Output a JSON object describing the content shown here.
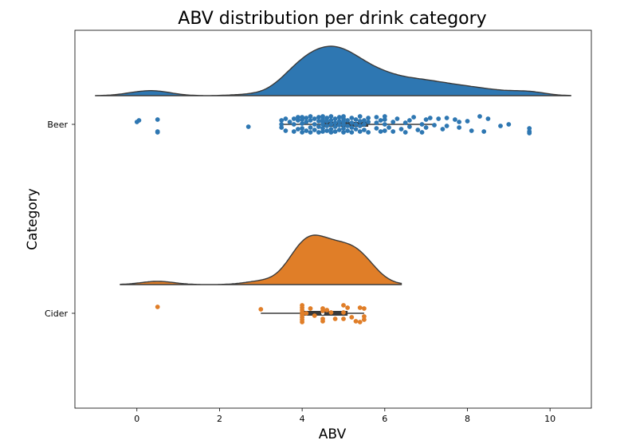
{
  "chart_data": {
    "type": "raincloud",
    "title": "ABV distribution per drink category",
    "xlabel": "ABV",
    "ylabel": "Category",
    "xlim": [
      -1.5,
      11
    ],
    "xticks": [
      0,
      2,
      4,
      6,
      8,
      10
    ],
    "grid": false,
    "categories": [
      "Beer",
      "Cider"
    ],
    "series": [
      {
        "name": "Beer",
        "color": "#2e77b2",
        "density_range": [
          -1.0,
          10.5
        ],
        "density_peak": 4.7,
        "box": {
          "whisker_low": 3.5,
          "q1": 4.5,
          "median": 4.9,
          "q3": 5.6,
          "whisker_high": 7.2
        },
        "points": [
          [
            0.0,
            0.03
          ],
          [
            0.05,
            0.05
          ],
          [
            0.5,
            -0.1
          ],
          [
            0.5,
            -0.09
          ],
          [
            0.5,
            0.06
          ],
          [
            2.7,
            -0.03
          ],
          [
            3.5,
            0.05
          ],
          [
            3.5,
            -0.04
          ],
          [
            3.5,
            0.0
          ],
          [
            3.6,
            0.07
          ],
          [
            3.6,
            -0.08
          ],
          [
            3.7,
            0.03
          ],
          [
            3.8,
            -0.09
          ],
          [
            3.8,
            0.07
          ],
          [
            3.8,
            0.0
          ],
          [
            3.9,
            -0.06
          ],
          [
            3.9,
            0.05
          ],
          [
            3.9,
            0.09
          ],
          [
            4.0,
            -0.1
          ],
          [
            4.0,
            -0.05
          ],
          [
            4.0,
            0.01
          ],
          [
            4.0,
            0.06
          ],
          [
            4.0,
            0.09
          ],
          [
            4.1,
            -0.08
          ],
          [
            4.1,
            0.03
          ],
          [
            4.1,
            0.08
          ],
          [
            4.2,
            -0.1
          ],
          [
            4.2,
            -0.04
          ],
          [
            4.2,
            0.05
          ],
          [
            4.2,
            0.1
          ],
          [
            4.3,
            -0.07
          ],
          [
            4.3,
            0.0
          ],
          [
            4.3,
            0.07
          ],
          [
            4.4,
            -0.1
          ],
          [
            4.4,
            -0.03
          ],
          [
            4.4,
            0.04
          ],
          [
            4.4,
            0.09
          ],
          [
            4.5,
            -0.09
          ],
          [
            4.5,
            -0.05
          ],
          [
            4.5,
            0.0
          ],
          [
            4.5,
            0.03
          ],
          [
            4.5,
            0.06
          ],
          [
            4.5,
            0.1
          ],
          [
            4.6,
            -0.08
          ],
          [
            4.6,
            -0.02
          ],
          [
            4.6,
            0.04
          ],
          [
            4.6,
            0.08
          ],
          [
            4.7,
            -0.1
          ],
          [
            4.7,
            -0.06
          ],
          [
            4.7,
            0.0
          ],
          [
            4.7,
            0.05
          ],
          [
            4.7,
            0.1
          ],
          [
            4.8,
            -0.09
          ],
          [
            4.8,
            -0.03
          ],
          [
            4.8,
            0.02
          ],
          [
            4.8,
            0.07
          ],
          [
            4.9,
            -0.07
          ],
          [
            4.9,
            -0.01
          ],
          [
            4.9,
            0.04
          ],
          [
            4.9,
            0.09
          ],
          [
            5.0,
            -0.1
          ],
          [
            5.0,
            -0.05
          ],
          [
            5.0,
            0.0
          ],
          [
            5.0,
            0.03
          ],
          [
            5.0,
            0.07
          ],
          [
            5.0,
            0.1
          ],
          [
            5.1,
            -0.08
          ],
          [
            5.1,
            -0.02
          ],
          [
            5.1,
            0.05
          ],
          [
            5.2,
            -0.1
          ],
          [
            5.2,
            -0.04
          ],
          [
            5.2,
            0.02
          ],
          [
            5.2,
            0.08
          ],
          [
            5.3,
            -0.06
          ],
          [
            5.3,
            0.0
          ],
          [
            5.3,
            0.06
          ],
          [
            5.4,
            -0.09
          ],
          [
            5.4,
            -0.02
          ],
          [
            5.4,
            0.04
          ],
          [
            5.4,
            0.1
          ],
          [
            5.5,
            -0.07
          ],
          [
            5.5,
            0.0
          ],
          [
            5.5,
            0.05
          ],
          [
            5.6,
            -0.1
          ],
          [
            5.6,
            0.03
          ],
          [
            5.6,
            0.08
          ],
          [
            5.8,
            -0.05
          ],
          [
            5.8,
            0.02
          ],
          [
            5.8,
            0.09
          ],
          [
            5.9,
            -0.09
          ],
          [
            5.9,
            0.05
          ],
          [
            6.0,
            -0.08
          ],
          [
            6.0,
            0.0
          ],
          [
            6.0,
            0.06
          ],
          [
            6.0,
            0.1
          ],
          [
            6.1,
            -0.04
          ],
          [
            6.2,
            0.03
          ],
          [
            6.2,
            -0.09
          ],
          [
            6.3,
            0.07
          ],
          [
            6.4,
            -0.06
          ],
          [
            6.5,
            0.02
          ],
          [
            6.5,
            -0.1
          ],
          [
            6.6,
            0.05
          ],
          [
            6.6,
            -0.03
          ],
          [
            6.7,
            0.09
          ],
          [
            6.8,
            -0.07
          ],
          [
            6.9,
            0.0
          ],
          [
            6.9,
            -0.1
          ],
          [
            7.0,
            0.06
          ],
          [
            7.0,
            -0.04
          ],
          [
            7.1,
            0.08
          ],
          [
            7.2,
            -0.01
          ],
          [
            7.3,
            0.07
          ],
          [
            7.4,
            -0.06
          ],
          [
            7.5,
            0.08
          ],
          [
            7.5,
            -0.02
          ],
          [
            7.7,
            0.06
          ],
          [
            7.8,
            0.03
          ],
          [
            7.8,
            -0.04
          ],
          [
            8.0,
            0.04
          ],
          [
            8.1,
            -0.08
          ],
          [
            8.3,
            0.1
          ],
          [
            8.4,
            -0.09
          ],
          [
            8.5,
            0.07
          ],
          [
            8.8,
            -0.02
          ],
          [
            9.0,
            0.0
          ],
          [
            9.5,
            -0.05
          ],
          [
            9.5,
            -0.09
          ],
          [
            9.5,
            -0.11
          ]
        ]
      },
      {
        "name": "Cider",
        "color": "#e07e28",
        "density_range": [
          -0.4,
          6.4
        ],
        "density_peak": 4.3,
        "box": {
          "whisker_low": 3.0,
          "q1": 4.0,
          "median": 4.5,
          "q3": 5.1,
          "whisker_high": 5.5
        },
        "points": [
          [
            0.5,
            0.08
          ],
          [
            3.0,
            0.05
          ],
          [
            4.0,
            0.1
          ],
          [
            4.0,
            0.07
          ],
          [
            4.0,
            0.04
          ],
          [
            4.0,
            0.01
          ],
          [
            4.0,
            -0.02
          ],
          [
            4.0,
            -0.05
          ],
          [
            4.0,
            -0.08
          ],
          [
            4.0,
            -0.11
          ],
          [
            4.1,
            0.0
          ],
          [
            4.2,
            0.06
          ],
          [
            4.3,
            -0.03
          ],
          [
            4.5,
            0.06
          ],
          [
            4.5,
            0.03
          ],
          [
            4.5,
            -0.07
          ],
          [
            4.5,
            -0.1
          ],
          [
            4.6,
            0.04
          ],
          [
            4.7,
            0.01
          ],
          [
            4.8,
            -0.07
          ],
          [
            5.0,
            0.1
          ],
          [
            5.0,
            0.01
          ],
          [
            5.0,
            -0.07
          ],
          [
            5.1,
            0.07
          ],
          [
            5.2,
            -0.05
          ],
          [
            5.3,
            -0.1
          ],
          [
            5.4,
            0.07
          ],
          [
            5.4,
            -0.11
          ],
          [
            5.5,
            0.06
          ],
          [
            5.5,
            -0.04
          ],
          [
            5.5,
            -0.08
          ]
        ]
      }
    ]
  }
}
